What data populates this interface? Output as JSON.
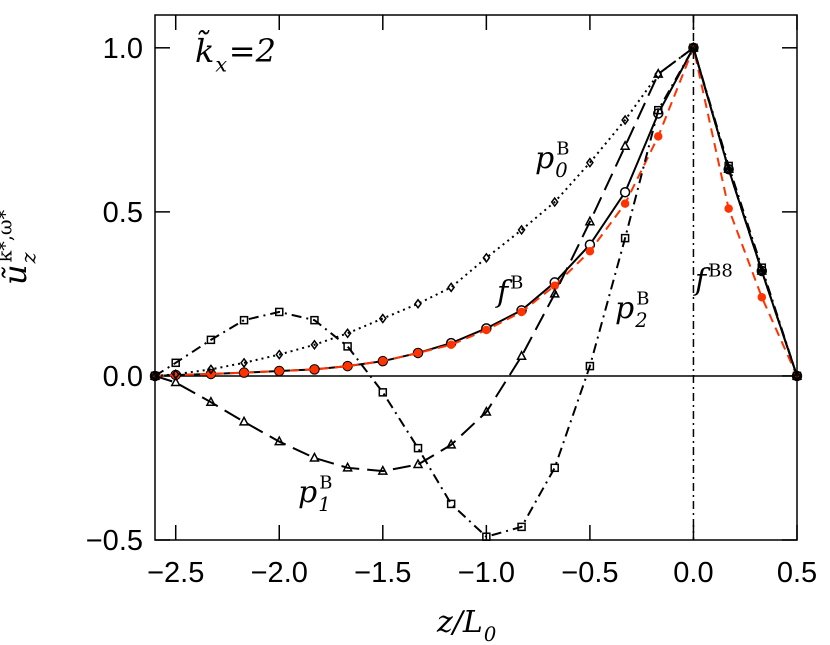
{
  "chart_data": {
    "type": "line",
    "ylabel": {
      "base": "ũ",
      "sub": "z",
      "sup": "k*,ω*"
    },
    "xlabel": {
      "base": "z/L",
      "sub": "0"
    },
    "annotation": {
      "base": "k̃",
      "sub": "x",
      "rest": "=2"
    },
    "x": [
      -2.6,
      -2.5,
      -2.33,
      -2.17,
      -2.0,
      -1.83,
      -1.67,
      -1.5,
      -1.33,
      -1.17,
      -1.0,
      -0.83,
      -0.67,
      -0.5,
      -0.33,
      -0.17,
      0,
      0.17,
      0.33,
      0.5
    ],
    "series": [
      {
        "label": {
          "base": "f",
          "sup": "B"
        },
        "color": "#000000",
        "marker": "open-circle",
        "dash": "solid",
        "values": [
          0,
          0.003,
          0.006,
          0.01,
          0.015,
          0.02,
          0.03,
          0.045,
          0.07,
          0.1,
          0.145,
          0.2,
          0.285,
          0.4,
          0.56,
          0.8,
          1.0,
          0.63,
          0.32,
          0
        ]
      },
      {
        "label": {
          "base": "f",
          "sup": "B8"
        },
        "color": "#ff3300",
        "marker": "filled-circle",
        "dash": "dashed",
        "values": [
          0,
          0.003,
          0.006,
          0.01,
          0.015,
          0.02,
          0.03,
          0.045,
          0.07,
          0.095,
          0.14,
          0.195,
          0.275,
          0.38,
          0.525,
          0.73,
          1.0,
          0.51,
          0.24,
          0
        ]
      },
      {
        "label": {
          "base": "p",
          "sub": "0",
          "sup": "B"
        },
        "color": "#000000",
        "marker": "diamond",
        "dash": "dotted",
        "values": [
          0,
          0.005,
          0.02,
          0.04,
          0.065,
          0.095,
          0.13,
          0.175,
          0.22,
          0.27,
          0.36,
          0.445,
          0.53,
          0.65,
          0.78,
          0.92,
          1.0,
          0.63,
          0.32,
          0
        ]
      },
      {
        "label": {
          "base": "p",
          "sub": "1",
          "sup": "B"
        },
        "color": "#000000",
        "marker": "triangle",
        "dash": "long-dash",
        "values": [
          0,
          -0.02,
          -0.08,
          -0.14,
          -0.2,
          -0.25,
          -0.28,
          -0.29,
          -0.27,
          -0.21,
          -0.11,
          0.06,
          0.25,
          0.47,
          0.7,
          0.92,
          1.0,
          0.63,
          0.32,
          0
        ]
      },
      {
        "label": {
          "base": "p",
          "sub": "2",
          "sup": "B"
        },
        "color": "#000000",
        "marker": "square",
        "dash": "dash-dot",
        "values": [
          0,
          0.04,
          0.11,
          0.17,
          0.195,
          0.17,
          0.09,
          -0.05,
          -0.22,
          -0.39,
          -0.49,
          -0.46,
          -0.28,
          0.03,
          0.42,
          0.81,
          1.0,
          0.64,
          0.33,
          0
        ]
      }
    ],
    "xlim": [
      -2.6,
      0.5
    ],
    "ylim": [
      -0.5,
      1.1
    ],
    "xticks": [
      {
        "value": -2.5,
        "label": "−2.5"
      },
      {
        "value": -2.0,
        "label": "−2.0"
      },
      {
        "value": -1.5,
        "label": "−1.5"
      },
      {
        "value": -1.0,
        "label": "−1.0"
      },
      {
        "value": -0.5,
        "label": "−0.5"
      },
      {
        "value": 0,
        "label": "0.0"
      },
      0.5
    ],
    "yticks": [
      {
        "value": -0.5,
        "label": "−0.5"
      },
      {
        "value": 0,
        "label": "0.0"
      },
      0.5,
      {
        "value": 1.0,
        "label": "1.0"
      }
    ]
  }
}
